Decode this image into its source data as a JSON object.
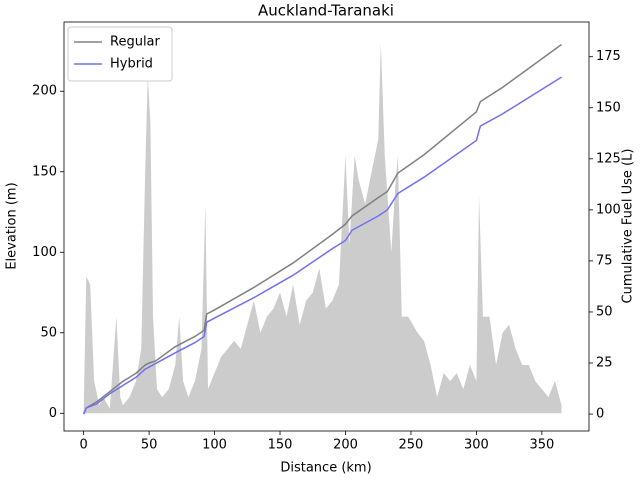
{
  "chart_data": {
    "type": "line",
    "title": "Auckland-Taranaki",
    "xlabel": "Distance (km)",
    "ylabel": "Elevation (m)",
    "y2label": "Cumulative Fuel Use (L)",
    "xlim": [
      -15,
      386
    ],
    "xticks": [
      0,
      50,
      100,
      150,
      200,
      250,
      300,
      350
    ],
    "ylim": [
      -11,
      243
    ],
    "yticks": [
      0,
      50,
      100,
      150,
      200
    ],
    "y2lim": [
      -8.3,
      192
    ],
    "y2ticks": [
      0,
      25,
      50,
      75,
      100,
      125,
      150,
      175
    ],
    "legend": "upper left",
    "area": {
      "color": "#cccccc",
      "x": [
        0,
        2,
        5,
        8,
        12,
        15,
        20,
        25,
        28,
        30,
        35,
        40,
        44,
        47,
        49,
        51,
        53,
        56,
        60,
        65,
        70,
        73,
        76,
        80,
        85,
        90,
        93,
        95,
        100,
        105,
        110,
        115,
        120,
        125,
        130,
        135,
        140,
        145,
        150,
        155,
        160,
        165,
        170,
        175,
        180,
        185,
        190,
        195,
        200,
        203,
        207,
        210,
        215,
        220,
        225,
        227,
        230,
        235,
        238,
        240,
        243,
        248,
        255,
        260,
        265,
        270,
        275,
        280,
        285,
        290,
        295,
        300,
        302,
        305,
        310,
        315,
        320,
        325,
        330,
        335,
        340,
        345,
        350,
        355,
        360,
        365
      ],
      "values": [
        0,
        85,
        80,
        20,
        5,
        10,
        3,
        60,
        10,
        5,
        10,
        20,
        40,
        150,
        210,
        180,
        60,
        15,
        10,
        15,
        30,
        60,
        20,
        10,
        20,
        40,
        130,
        15,
        25,
        35,
        40,
        45,
        40,
        55,
        70,
        50,
        60,
        65,
        75,
        60,
        80,
        55,
        70,
        75,
        90,
        65,
        70,
        80,
        160,
        105,
        160,
        145,
        130,
        150,
        170,
        230,
        160,
        100,
        140,
        160,
        60,
        60,
        50,
        45,
        30,
        10,
        25,
        20,
        25,
        15,
        30,
        20,
        135,
        60,
        60,
        30,
        50,
        55,
        40,
        30,
        30,
        20,
        15,
        10,
        20,
        5
      ]
    },
    "series": [
      {
        "name": "Regular",
        "color": "#808080",
        "axis": "y2",
        "x": [
          0,
          2,
          10,
          20,
          30,
          40,
          47,
          50,
          55,
          70,
          85,
          92,
          94,
          100,
          130,
          160,
          190,
          200,
          205,
          225,
          232,
          240,
          260,
          300,
          303,
          320,
          365
        ],
        "values": [
          0,
          3,
          6,
          11,
          16,
          20,
          24,
          25,
          26,
          33,
          38,
          41,
          49,
          51,
          62,
          74,
          88,
          93,
          97,
          106,
          109,
          118,
          127,
          148,
          153,
          160,
          181
        ]
      },
      {
        "name": "Hybrid",
        "color": "#7070f0",
        "axis": "y2",
        "x": [
          0,
          2,
          10,
          20,
          30,
          40,
          47,
          50,
          70,
          85,
          92,
          94,
          100,
          130,
          160,
          190,
          200,
          205,
          225,
          232,
          240,
          260,
          300,
          303,
          320,
          365
        ],
        "values": [
          0,
          3,
          5,
          10,
          14,
          18,
          22,
          23,
          30,
          35,
          38,
          45,
          47,
          57,
          68,
          81,
          85,
          90,
          97,
          100,
          108,
          116,
          134,
          141,
          147,
          165
        ]
      }
    ]
  }
}
